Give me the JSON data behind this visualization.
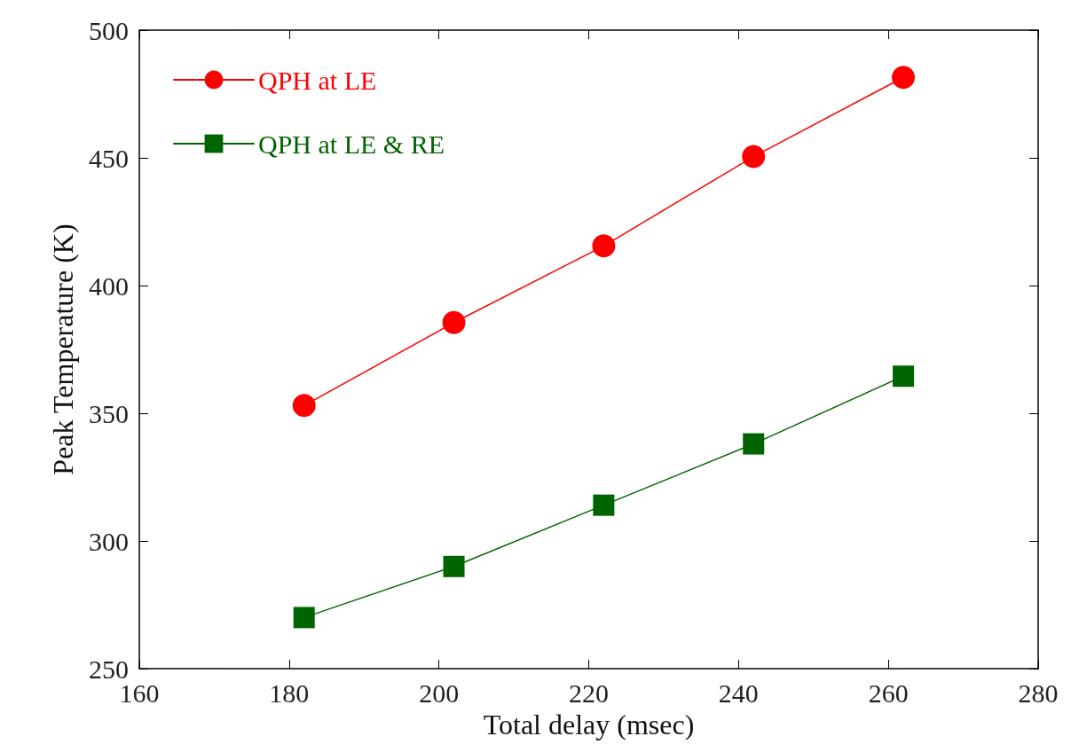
{
  "chart_data": {
    "type": "line",
    "xlabel": "Total delay (msec)",
    "ylabel": "Peak Temperature (K)",
    "xlim": [
      160,
      280
    ],
    "xticks": [
      160,
      180,
      200,
      220,
      240,
      260,
      280
    ],
    "ylim": [
      250,
      500
    ],
    "yticks": [
      250,
      300,
      350,
      400,
      450,
      500
    ],
    "x": [
      182,
      202,
      222,
      242,
      262
    ],
    "series": [
      {
        "name": "QPH at LE",
        "color": "#ff0000",
        "marker": "circle",
        "values": [
          353,
          385.5,
          415.5,
          450.5,
          481.5
        ]
      },
      {
        "name": "QPH at LE & RE",
        "color": "#006400",
        "marker": "square",
        "values": [
          270,
          290,
          314,
          338,
          364.5
        ]
      }
    ],
    "grid": false,
    "legend": "top left",
    "line_style": "solid"
  }
}
